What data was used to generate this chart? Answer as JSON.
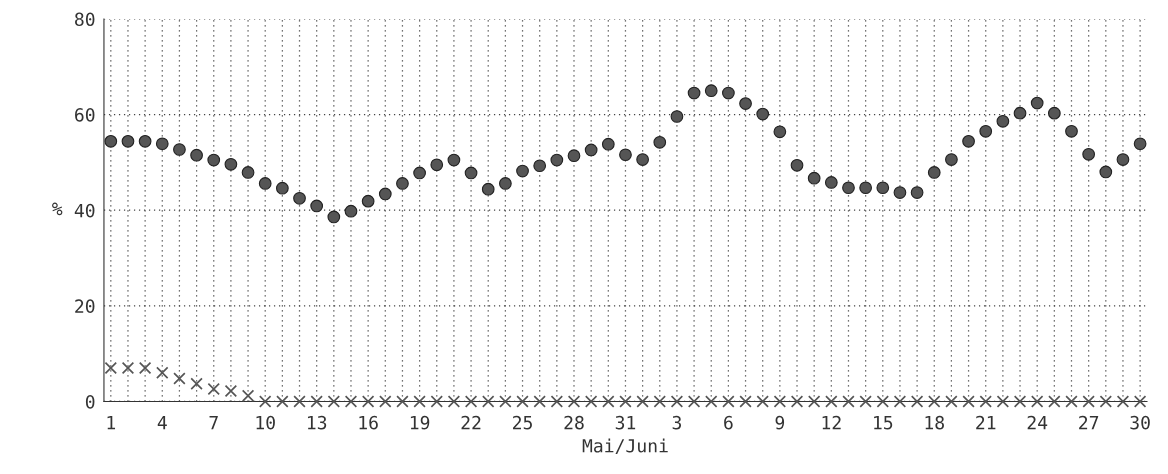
{
  "chart_data": {
    "type": "scatter",
    "xlabel": "Mai/Juni",
    "ylabel": "%",
    "categories": [
      "1",
      null,
      null,
      "4",
      null,
      null,
      "7",
      null,
      null,
      "10",
      null,
      null,
      "13",
      null,
      null,
      "16",
      null,
      null,
      "19",
      null,
      null,
      "22",
      null,
      null,
      "25",
      null,
      null,
      "28",
      null,
      null,
      "31",
      null,
      null,
      "3",
      null,
      null,
      "6",
      null,
      null,
      "9",
      null,
      null,
      "12",
      null,
      null,
      "15",
      null,
      null,
      "18",
      null,
      null,
      "21",
      null,
      null,
      "24",
      null,
      null,
      "27",
      null,
      null,
      "30"
    ],
    "series": [
      {
        "color": "#555555",
        "marker": "circle",
        "values": [
          54.4,
          54.4,
          54.4,
          53.9,
          52.7,
          51.5,
          50.5,
          49.6,
          47.9,
          45.6,
          44.6,
          42.5,
          40.9,
          38.6,
          39.8,
          41.9,
          43.4,
          45.6,
          47.8,
          49.5,
          50.5,
          47.8,
          44.4,
          45.6,
          48.2,
          49.3,
          50.5,
          51.4,
          52.6,
          53.8,
          51.6,
          50.6,
          54.2,
          59.6,
          64.5,
          65.0,
          64.5,
          62.3,
          60.1,
          56.4,
          49.4,
          46.7,
          45.8,
          44.7,
          44.7,
          44.7,
          43.7,
          43.7,
          47.9,
          50.6,
          54.4,
          56.5,
          58.6,
          60.3,
          62.4,
          60.3,
          56.5,
          51.7,
          48.0,
          50.6,
          53.9
        ]
      },
      {
        "color": "#555555",
        "marker": "cross",
        "values": [
          7.0,
          7.0,
          7.0,
          6.0,
          4.8,
          3.7,
          2.6,
          2.2,
          1.2,
          0,
          0,
          0,
          0,
          0,
          0,
          0,
          0,
          0,
          0,
          0,
          0,
          0,
          0,
          0,
          0,
          0,
          0,
          0,
          0,
          0,
          0,
          0,
          0,
          0,
          0,
          0,
          0,
          0,
          0,
          0,
          0,
          0,
          0,
          0,
          0,
          0,
          0,
          0,
          0,
          0,
          0,
          0,
          0,
          0,
          0,
          0,
          0,
          0,
          0,
          0,
          0
        ]
      }
    ],
    "ylim": [
      0,
      80
    ],
    "yticks": [
      0,
      20,
      40,
      60,
      80
    ],
    "grid": true,
    "legend": false
  }
}
